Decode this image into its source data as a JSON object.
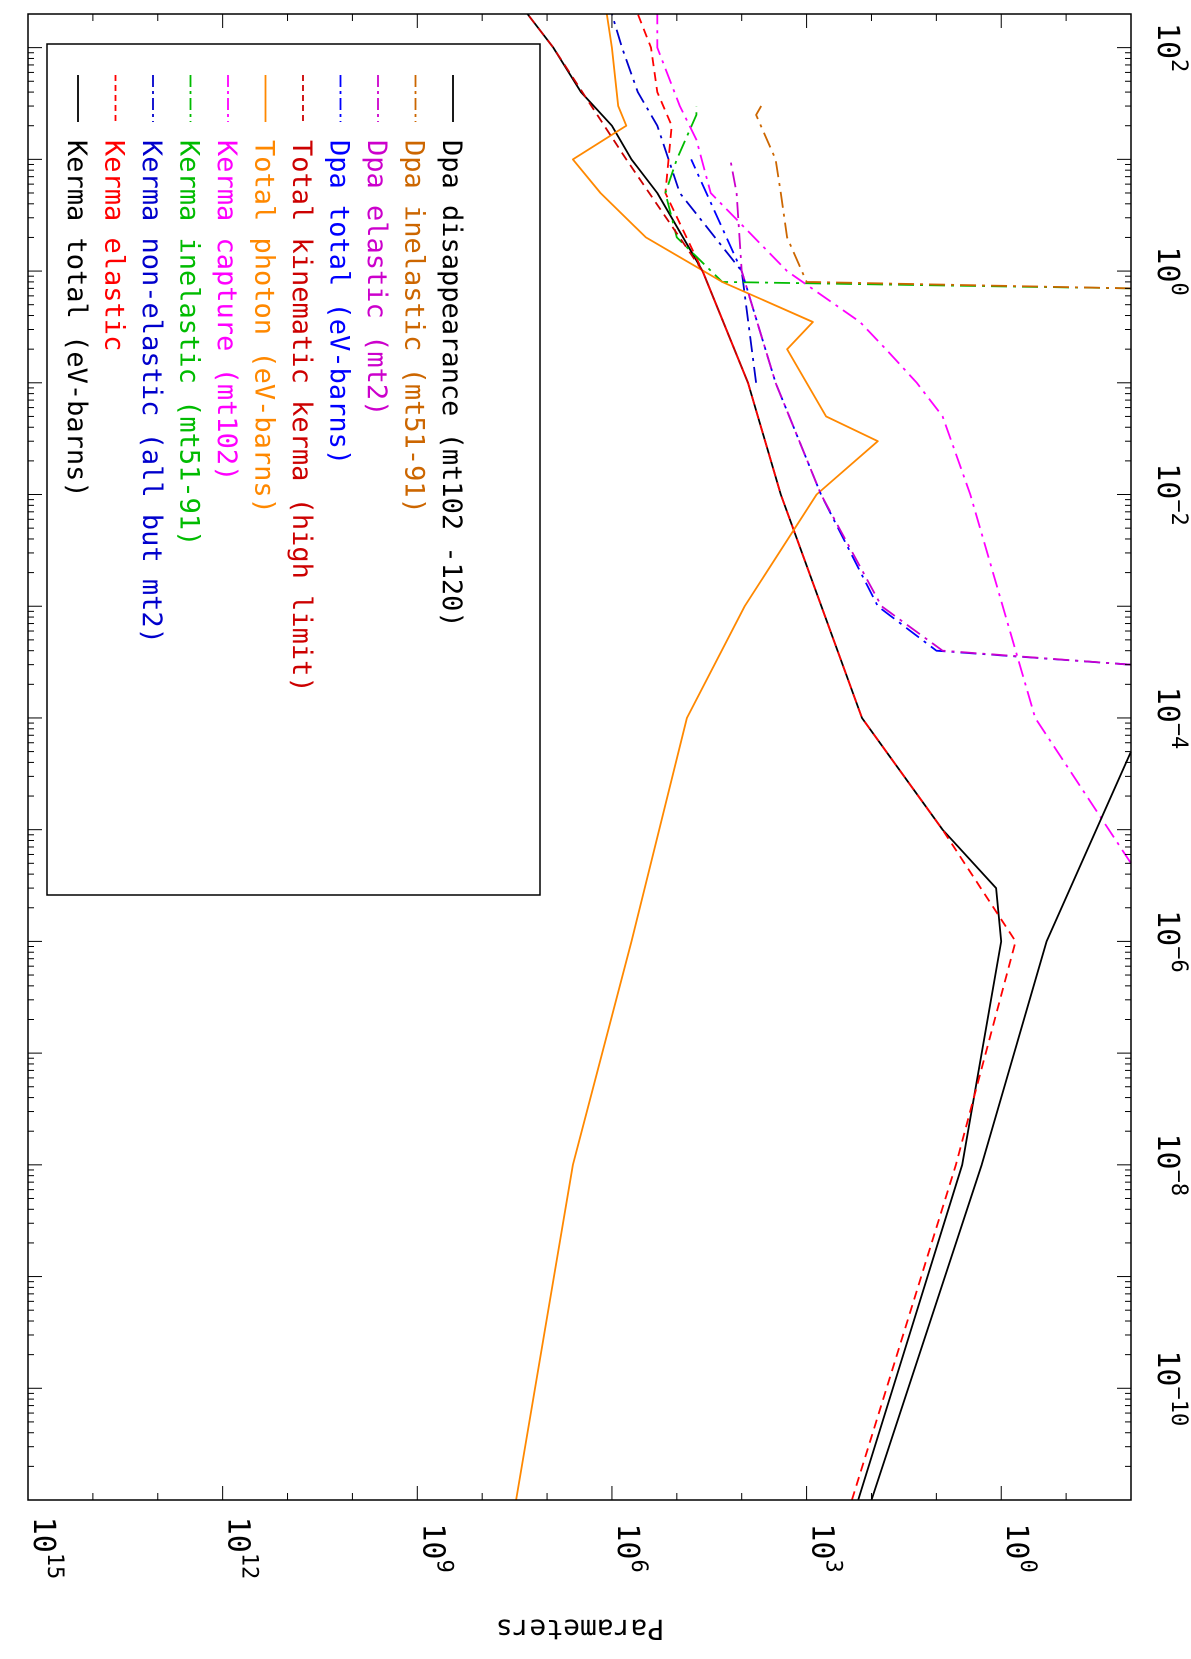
{
  "chart_data": {
    "type": "line",
    "orientation": "rotated 90 degrees clockwise (log x axis runs top-to-bottom, log y axis runs right-to-left)",
    "ylabel": "Parameters",
    "xlabel": "",
    "x_scale": "log",
    "y_scale": "log",
    "xlim": [
      1e-11,
      200
    ],
    "ylim": [
      0.01,
      1000000000000000.0
    ],
    "x_ticks": [
      {
        "base": "10",
        "exp": "−10",
        "value": 1e-10
      },
      {
        "base": "10",
        "exp": "−8",
        "value": 1e-08
      },
      {
        "base": "10",
        "exp": "−6",
        "value": 1e-06
      },
      {
        "base": "10",
        "exp": "−4",
        "value": 0.0001
      },
      {
        "base": "10",
        "exp": "−2",
        "value": 0.01
      },
      {
        "base": "10",
        "exp": "0",
        "value": 1
      },
      {
        "base": "10",
        "exp": "2",
        "value": 100
      }
    ],
    "y_ticks": [
      {
        "base": "10",
        "exp": "0",
        "value": 1
      },
      {
        "base": "10",
        "exp": "3",
        "value": 1000.0
      },
      {
        "base": "10",
        "exp": "6",
        "value": 1000000.0
      },
      {
        "base": "10",
        "exp": "9",
        "value": 1000000000.0
      },
      {
        "base": "10",
        "exp": "12",
        "value": 1000000000000.0
      },
      {
        "base": "10",
        "exp": "15",
        "value": 1000000000000000.0
      }
    ],
    "legend": {
      "placement": "top-left",
      "entries": [
        {
          "text": "Kerma total  (eV-barns)",
          "color": "#000000",
          "dash": "solid"
        },
        {
          "text": "Kerma elastic",
          "color": "#ff0000",
          "dash": "dashed"
        },
        {
          "text": "Kerma non-elastic (all but mt2)",
          "color": "#0000cc",
          "dash": "dashdot"
        },
        {
          "text": "Kerma inelastic (mt51-91)",
          "color": "#00bb00",
          "dash": "dashdot"
        },
        {
          "text": "Kerma capture (mt102)",
          "color": "#ff00ff",
          "dash": "dashdot"
        },
        {
          "text": "Total photon (eV-barns)",
          "color": "#ff8800",
          "dash": "solid"
        },
        {
          "text": "Total kinematic kerma (high limit)",
          "color": "#cc0000",
          "dash": "dashed"
        },
        {
          "text": "Dpa total (eV-barns)",
          "color": "#0000ff",
          "dash": "dashdot"
        },
        {
          "text": "Dpa elastic (mt2)",
          "color": "#cc00cc",
          "dash": "dashdot"
        },
        {
          "text": "Dpa inelastic (mt51-91)",
          "color": "#cc6600",
          "dash": "dashdot"
        },
        {
          "text": "Dpa disappearance (mt102 -120)",
          "color": "#000000",
          "dash": "solid"
        }
      ]
    },
    "series": [
      {
        "name": "Kerma total  (eV-barns)",
        "color": "#000000",
        "dash": "solid",
        "points": [
          [
            5e-12,
            160
          ],
          [
            1e-08,
            4
          ],
          [
            1e-06,
            1
          ],
          [
            3e-06,
            1.2
          ],
          [
            1e-05,
            8
          ],
          [
            0.0001,
            140
          ],
          [
            0.01,
            2500
          ],
          [
            0.1,
            8000
          ],
          [
            1,
            40000
          ],
          [
            5,
            200000
          ],
          [
            10,
            500000
          ],
          [
            20,
            1000000
          ],
          [
            40,
            3000000
          ],
          [
            100,
            8000000
          ],
          [
            200,
            20000000
          ]
        ]
      },
      {
        "name": "Kerma elastic",
        "color": "#ff0000",
        "dash": "dashed",
        "points": [
          [
            5e-12,
            200
          ],
          [
            1e-08,
            5
          ],
          [
            1e-06,
            0.6
          ],
          [
            1e-05,
            8
          ],
          [
            0.0001,
            140
          ],
          [
            0.01,
            2500
          ],
          [
            0.1,
            8000
          ],
          [
            1,
            40000
          ],
          [
            5,
            150000
          ],
          [
            20,
            120000
          ],
          [
            40,
            200000
          ],
          [
            100,
            250000
          ],
          [
            200,
            400000
          ]
        ]
      },
      {
        "name": "Kerma non-elastic (all but mt2)",
        "color": "#0000cc",
        "dash": "dashdot",
        "points": [
          [
            0.1,
            6000
          ],
          [
            1,
            10000
          ],
          [
            5,
            90000
          ],
          [
            20,
            200000
          ],
          [
            40,
            400000
          ],
          [
            100,
            700000
          ],
          [
            200,
            1000000
          ]
        ]
      },
      {
        "name": "Kerma inelastic (mt51-91)",
        "color": "#00bb00",
        "dash": "dashdot",
        "points": [
          [
            0.7,
            0.01
          ],
          [
            0.8,
            20000
          ],
          [
            2,
            100000
          ],
          [
            5,
            150000
          ],
          [
            10,
            100000
          ],
          [
            25,
            50000
          ],
          [
            30,
            50000
          ]
        ]
      },
      {
        "name": "Kerma capture (mt102)",
        "color": "#ff00ff",
        "dash": "dashdot",
        "points": [
          [
            5e-06,
            0.01
          ],
          [
            0.0001,
            0.3
          ],
          [
            0.01,
            3
          ],
          [
            0.05,
            8
          ],
          [
            0.1,
            20
          ],
          [
            0.2,
            60
          ],
          [
            0.35,
            150
          ],
          [
            1,
            2000
          ],
          [
            5,
            30000
          ],
          [
            15,
            50000
          ],
          [
            30,
            90000
          ],
          [
            100,
            200000
          ],
          [
            200,
            200000
          ]
        ]
      },
      {
        "name": "Total photon (eV-barns)",
        "color": "#ff8800",
        "dash": "solid",
        "points": [
          [
            5e-12,
            30000000
          ],
          [
            1e-08,
            4000000
          ],
          [
            1e-06,
            500000
          ],
          [
            0.0001,
            70000
          ],
          [
            0.001,
            9000
          ],
          [
            0.01,
            700
          ],
          [
            0.03,
            80
          ],
          [
            0.05,
            500
          ],
          [
            0.2,
            2000
          ],
          [
            0.35,
            800
          ],
          [
            0.8,
            20000
          ],
          [
            2,
            300000
          ],
          [
            5,
            1500000
          ],
          [
            10,
            4000000
          ],
          [
            20,
            600000
          ],
          [
            30,
            800000
          ],
          [
            100,
            1000000
          ],
          [
            200,
            1200000
          ]
        ]
      },
      {
        "name": "Total kinematic kerma (high limit)",
        "color": "#cc0000",
        "dash": "dashed",
        "points": [
          [
            0.1,
            8000
          ],
          [
            1,
            40000
          ],
          [
            10,
            600000
          ],
          [
            100,
            8000000
          ],
          [
            200,
            20000000
          ]
        ]
      },
      {
        "name": "Dpa total (eV-barns)",
        "color": "#0000ff",
        "dash": "dashdot",
        "points": [
          [
            0.0003,
            0.01
          ],
          [
            0.0004,
            10
          ],
          [
            0.001,
            80
          ],
          [
            0.01,
            600
          ],
          [
            0.1,
            3000
          ],
          [
            1,
            10000
          ],
          [
            10,
            60000
          ]
        ]
      },
      {
        "name": "Dpa elastic (mt2)",
        "color": "#cc00cc",
        "dash": "dashdot",
        "points": [
          [
            0.0003,
            0.01
          ],
          [
            0.0004,
            8
          ],
          [
            0.001,
            70
          ],
          [
            0.01,
            600
          ],
          [
            0.1,
            3000
          ],
          [
            1,
            10000
          ],
          [
            5,
            12000
          ],
          [
            10,
            15000
          ]
        ]
      },
      {
        "name": "Dpa inelastic (mt51-91)",
        "color": "#cc6600",
        "dash": "dashdot",
        "points": [
          [
            0.7,
            0.01
          ],
          [
            0.8,
            1000
          ],
          [
            2,
            2000
          ],
          [
            5,
            2500
          ],
          [
            10,
            3000
          ],
          [
            25,
            6000
          ],
          [
            30,
            5000
          ]
        ]
      },
      {
        "name": "Dpa disappearance (mt102 -120)",
        "color": "#000000",
        "dash": "solid",
        "points": [
          [
            5e-12,
            100
          ],
          [
            1e-08,
            2
          ],
          [
            1e-06,
            0.2
          ],
          [
            5e-05,
            0.01
          ]
        ]
      }
    ]
  }
}
